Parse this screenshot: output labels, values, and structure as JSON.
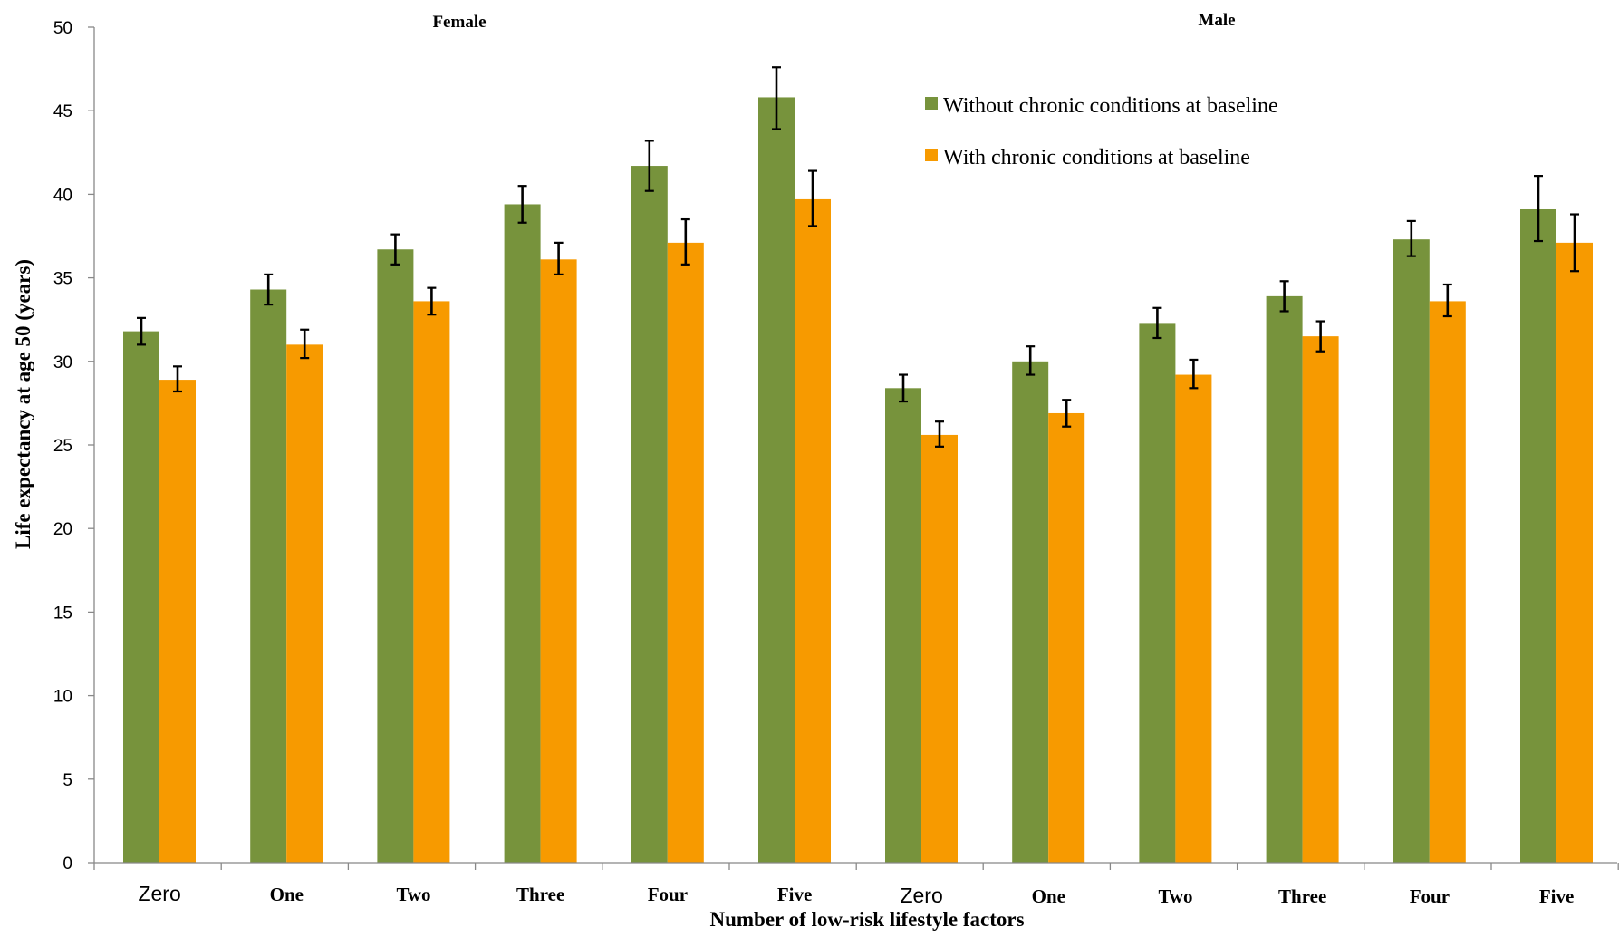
{
  "chart_data": {
    "type": "bar",
    "ylabel": "Life expectancy at age 50 (years)",
    "xlabel": "Number of low-risk lifestyle factors",
    "ylim": [
      0,
      50
    ],
    "yticks": [
      0,
      5,
      10,
      15,
      20,
      25,
      30,
      35,
      40,
      45,
      50
    ],
    "grid": false,
    "legend_position": "top-right",
    "panels": [
      {
        "label": "Female",
        "categories": [
          "Zero",
          "One",
          "Two",
          "Three",
          "Four",
          "Five"
        ],
        "series": [
          {
            "name": "Without chronic conditions at baseline",
            "color": "#77933C",
            "values": [
              31.8,
              34.3,
              36.7,
              39.4,
              41.7,
              45.8
            ],
            "error_low": [
              31.0,
              33.4,
              35.8,
              38.3,
              40.2,
              43.9
            ],
            "error_high": [
              32.6,
              35.2,
              37.6,
              40.5,
              43.2,
              47.6
            ]
          },
          {
            "name": "With chronic conditions at baseline",
            "color": "#F79A00",
            "values": [
              28.9,
              31.0,
              33.6,
              36.1,
              37.1,
              39.7
            ],
            "error_low": [
              28.2,
              30.2,
              32.8,
              35.2,
              35.8,
              38.1
            ],
            "error_high": [
              29.7,
              31.9,
              34.4,
              37.1,
              38.5,
              41.4
            ]
          }
        ]
      },
      {
        "label": "Male",
        "categories": [
          "Zero",
          "One",
          "Two",
          "Three",
          "Four",
          "Five"
        ],
        "series": [
          {
            "name": "Without chronic conditions at baseline",
            "color": "#77933C",
            "values": [
              28.4,
              30.0,
              32.3,
              33.9,
              37.3,
              39.1
            ],
            "error_low": [
              27.6,
              29.2,
              31.4,
              33.0,
              36.3,
              37.2
            ],
            "error_high": [
              29.2,
              30.9,
              33.2,
              34.8,
              38.4,
              41.1
            ]
          },
          {
            "name": "With chronic conditions at baseline",
            "color": "#F79A00",
            "values": [
              25.6,
              26.9,
              29.2,
              31.5,
              33.6,
              37.1
            ],
            "error_low": [
              24.9,
              26.1,
              28.4,
              30.6,
              32.7,
              35.4
            ],
            "error_high": [
              26.4,
              27.7,
              30.1,
              32.4,
              34.6,
              38.8
            ]
          }
        ]
      }
    ]
  }
}
